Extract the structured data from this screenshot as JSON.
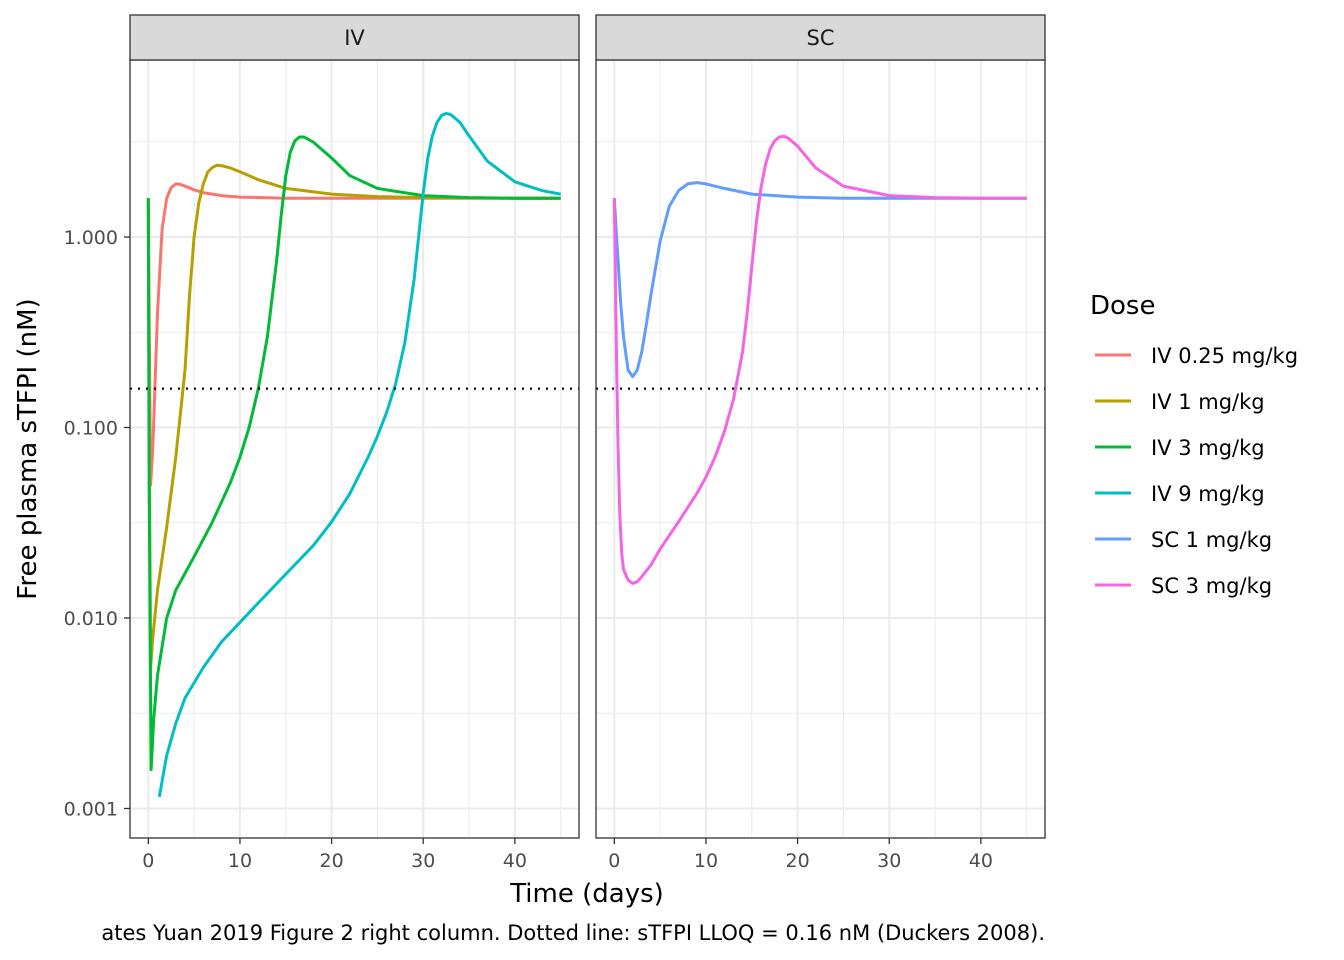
{
  "chart_data": {
    "type": "line",
    "facets": [
      "IV",
      "SC"
    ],
    "xlabel": "Time (days)",
    "ylabel": "Free plasma sTFPI (nM)",
    "y_scale": "log10",
    "xlim": [
      -2,
      47
    ],
    "ylim": [
      0.0007,
      8.5
    ],
    "x_ticks": [
      0,
      10,
      20,
      30,
      40
    ],
    "y_ticks": [
      0.001,
      0.01,
      0.1,
      1.0
    ],
    "y_tick_labels": [
      "0.001",
      "0.010",
      "0.100",
      "1.000"
    ],
    "grid": true,
    "legend_title": "Dose",
    "legend_position": "right",
    "caption": "ates Yuan 2019 Figure 2 right column. Dotted line: sTFPI LLOQ = 0.16 nM (Duckers 2008).",
    "reference_line": {
      "y": 0.16,
      "style": "dotted"
    },
    "series": [
      {
        "name": "IV 0.25 mg/kg",
        "facet": "IV",
        "color": "#F8766D",
        "x": [
          0,
          0.1,
          0.25,
          0.5,
          1,
          1.5,
          2,
          2.5,
          3,
          3.5,
          4,
          5,
          6,
          8,
          10,
          15,
          20,
          30,
          40,
          45
        ],
        "y": [
          1.6,
          0.35,
          0.05,
          0.08,
          0.4,
          1.1,
          1.6,
          1.82,
          1.9,
          1.89,
          1.85,
          1.77,
          1.71,
          1.65,
          1.62,
          1.6,
          1.6,
          1.6,
          1.6,
          1.6
        ]
      },
      {
        "name": "IV 1 mg/kg",
        "facet": "IV",
        "color": "#B79F00",
        "x": [
          0,
          0.1,
          0.25,
          0.5,
          1,
          2,
          3,
          4,
          4.5,
          5,
          5.5,
          6,
          6.5,
          7,
          7.5,
          8,
          9,
          10,
          12,
          15,
          20,
          25,
          30,
          40,
          45
        ],
        "y": [
          1.6,
          0.1,
          0.0055,
          0.008,
          0.014,
          0.03,
          0.07,
          0.2,
          0.5,
          1.0,
          1.5,
          1.9,
          2.2,
          2.32,
          2.38,
          2.37,
          2.3,
          2.2,
          2.0,
          1.8,
          1.68,
          1.63,
          1.61,
          1.6,
          1.6
        ]
      },
      {
        "name": "IV 3 mg/kg",
        "facet": "IV",
        "color": "#00BA38",
        "x": [
          0,
          0.1,
          0.3,
          0.6,
          1,
          2,
          3,
          5,
          7,
          9,
          10,
          11,
          12,
          13,
          14,
          14.5,
          15,
          15.5,
          16,
          16.5,
          17,
          18,
          20,
          22,
          25,
          30,
          35,
          40,
          45
        ],
        "y": [
          1.6,
          0.05,
          0.0016,
          0.003,
          0.005,
          0.01,
          0.014,
          0.021,
          0.032,
          0.052,
          0.07,
          0.1,
          0.16,
          0.3,
          0.75,
          1.3,
          2.1,
          2.8,
          3.2,
          3.35,
          3.35,
          3.15,
          2.6,
          2.1,
          1.8,
          1.65,
          1.61,
          1.6,
          1.6
        ]
      },
      {
        "name": "IV 9 mg/kg",
        "facet": "IV",
        "color": "#00BFC4",
        "x": [
          1.2,
          2,
          3,
          4,
          6,
          8,
          10,
          12,
          15,
          18,
          20,
          22,
          24,
          25,
          26,
          27,
          28,
          29,
          29.5,
          30,
          30.5,
          31,
          31.5,
          32,
          32.5,
          33,
          34,
          35,
          37,
          40,
          43,
          45
        ],
        "y": [
          0.00115,
          0.0019,
          0.0028,
          0.0038,
          0.0055,
          0.0075,
          0.0095,
          0.012,
          0.017,
          0.024,
          0.032,
          0.045,
          0.07,
          0.09,
          0.12,
          0.17,
          0.28,
          0.6,
          1.0,
          1.7,
          2.6,
          3.4,
          4.0,
          4.35,
          4.45,
          4.4,
          4.0,
          3.4,
          2.5,
          1.95,
          1.75,
          1.68
        ]
      },
      {
        "name": "SC 1 mg/kg",
        "facet": "SC",
        "color": "#619CFF",
        "x": [
          0,
          0.3,
          0.7,
          1,
          1.5,
          2,
          2.5,
          3,
          3.5,
          4,
          5,
          6,
          7,
          8,
          9,
          10,
          12,
          15,
          20,
          25,
          30,
          40,
          45
        ],
        "y": [
          1.6,
          0.9,
          0.45,
          0.3,
          0.2,
          0.185,
          0.2,
          0.25,
          0.35,
          0.5,
          0.95,
          1.45,
          1.75,
          1.9,
          1.93,
          1.9,
          1.8,
          1.68,
          1.62,
          1.6,
          1.6,
          1.6,
          1.6
        ]
      },
      {
        "name": "SC 3 mg/kg",
        "facet": "SC",
        "color": "#F564E3",
        "x": [
          0,
          0.2,
          0.4,
          0.6,
          0.8,
          1,
          1.5,
          2,
          2.5,
          3,
          4,
          5,
          7,
          9,
          10,
          11,
          12,
          13,
          14,
          14.5,
          15,
          15.5,
          16,
          16.5,
          17,
          17.5,
          18,
          18.5,
          19,
          20,
          22,
          25,
          30,
          35,
          40,
          45
        ],
        "y": [
          1.6,
          0.3,
          0.08,
          0.035,
          0.022,
          0.018,
          0.0158,
          0.0152,
          0.0155,
          0.0165,
          0.019,
          0.023,
          0.032,
          0.045,
          0.055,
          0.07,
          0.095,
          0.14,
          0.25,
          0.4,
          0.7,
          1.2,
          1.8,
          2.4,
          2.9,
          3.2,
          3.35,
          3.38,
          3.3,
          3.0,
          2.3,
          1.85,
          1.65,
          1.61,
          1.6,
          1.6
        ]
      }
    ]
  }
}
